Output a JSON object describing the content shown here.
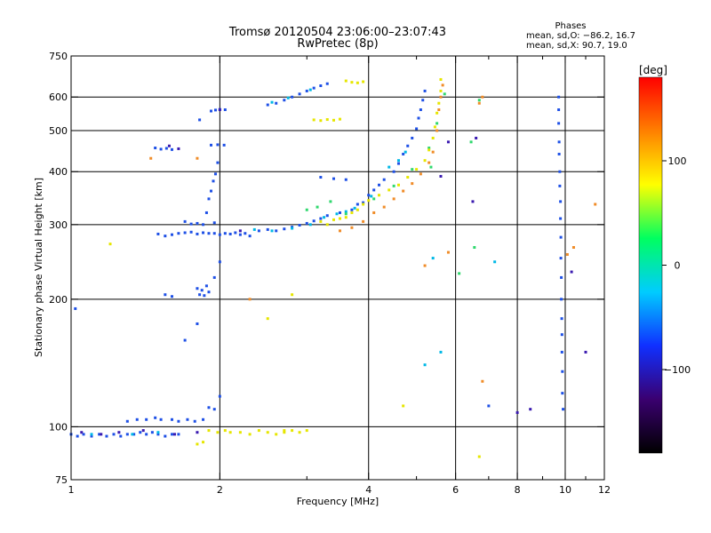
{
  "chart_data": {
    "type": "scatter",
    "title": "Tromsø 20120504 23:06:00–23:07:43",
    "subtitle": "RwPretec (8p)",
    "xlabel": "Frequency [MHz]",
    "ylabel": "Stationary phase Virtual Height [km]",
    "x_scale": "log",
    "y_scale": "log",
    "xlim": [
      1,
      12
    ],
    "ylim": [
      75,
      750
    ],
    "x_ticks": [
      1,
      2,
      4,
      6,
      8,
      10,
      12
    ],
    "x_minor_ticks": [
      3,
      5,
      7,
      9,
      11
    ],
    "y_ticks": [
      75,
      100,
      200,
      300,
      400,
      500,
      600,
      750
    ],
    "grid_x": [
      2,
      4,
      6,
      8,
      10
    ],
    "grid_y": [
      100,
      200,
      300,
      400,
      500,
      600
    ],
    "phases_box": {
      "heading": "Phases",
      "line1": "mean, sd,O: −86.2, 16.7",
      "line2": "mean, sd,X:  90.7, 19.0"
    },
    "colorbar": {
      "label": "[deg]",
      "range": [
        -180,
        180
      ],
      "ticks": [
        "100",
        "0",
        "−100"
      ],
      "tick_values": [
        100,
        0,
        -100
      ],
      "stops": [
        "#000000",
        "#3a0070",
        "#1030ff",
        "#00ccff",
        "#00ff60",
        "#ffff00",
        "#ff8000",
        "#ff0000"
      ]
    },
    "series": [
      {
        "color": "#1e50e6",
        "points": [
          [
            1.0,
            96
          ],
          [
            1.03,
            95
          ],
          [
            1.06,
            96
          ],
          [
            1.1,
            95
          ],
          [
            1.14,
            96
          ],
          [
            1.18,
            95
          ],
          [
            1.22,
            96
          ],
          [
            1.26,
            95
          ],
          [
            1.3,
            96
          ],
          [
            1.34,
            96
          ],
          [
            1.38,
            97
          ],
          [
            1.42,
            96
          ],
          [
            1.46,
            97
          ],
          [
            1.5,
            96
          ],
          [
            1.55,
            95
          ],
          [
            1.6,
            96
          ],
          [
            1.65,
            96
          ],
          [
            1.3,
            103
          ],
          [
            1.36,
            104
          ],
          [
            1.42,
            104
          ],
          [
            1.48,
            105
          ],
          [
            1.52,
            104
          ],
          [
            1.6,
            104
          ],
          [
            1.65,
            103
          ],
          [
            1.72,
            104
          ],
          [
            1.78,
            103
          ],
          [
            1.85,
            104
          ],
          [
            1.9,
            111
          ],
          [
            1.48,
            455
          ],
          [
            1.52,
            452
          ],
          [
            1.56,
            454
          ],
          [
            1.6,
            451
          ],
          [
            1.92,
            462
          ],
          [
            1.98,
            463
          ],
          [
            2.04,
            462
          ],
          [
            1.92,
            556
          ],
          [
            1.96,
            559
          ],
          [
            2.0,
            561
          ],
          [
            2.05,
            560
          ],
          [
            1.82,
            530
          ],
          [
            1.5,
            285
          ],
          [
            1.55,
            282
          ],
          [
            1.6,
            284
          ],
          [
            1.65,
            286
          ],
          [
            1.7,
            287
          ],
          [
            1.75,
            288
          ],
          [
            1.8,
            285
          ],
          [
            1.85,
            287
          ],
          [
            1.9,
            286
          ],
          [
            1.95,
            286
          ],
          [
            2.0,
            284
          ],
          [
            2.05,
            286
          ],
          [
            2.1,
            285
          ],
          [
            2.15,
            287
          ],
          [
            2.2,
            284
          ],
          [
            2.25,
            286
          ],
          [
            2.3,
            282
          ],
          [
            1.7,
            305
          ],
          [
            1.75,
            301
          ],
          [
            1.8,
            302
          ],
          [
            1.85,
            300
          ],
          [
            1.95,
            303
          ],
          [
            1.8,
            212
          ],
          [
            1.82,
            205
          ],
          [
            1.84,
            210
          ],
          [
            1.86,
            204
          ],
          [
            1.88,
            215
          ],
          [
            1.9,
            208
          ],
          [
            1.95,
            225
          ],
          [
            2.0,
            245
          ],
          [
            1.55,
            205
          ],
          [
            1.6,
            203
          ],
          [
            1.88,
            320
          ],
          [
            1.9,
            345
          ],
          [
            1.92,
            360
          ],
          [
            1.94,
            380
          ],
          [
            1.96,
            395
          ],
          [
            1.98,
            420
          ],
          [
            2.4,
            290
          ],
          [
            2.5,
            292
          ],
          [
            2.6,
            290
          ],
          [
            2.7,
            293
          ],
          [
            2.8,
            296
          ],
          [
            2.9,
            299
          ],
          [
            3.0,
            302
          ],
          [
            3.1,
            306
          ],
          [
            3.2,
            310
          ],
          [
            3.3,
            315
          ],
          [
            3.5,
            320
          ],
          [
            3.7,
            325
          ],
          [
            3.8,
            335
          ],
          [
            3.9,
            338
          ],
          [
            4.0,
            352
          ],
          [
            4.1,
            362
          ],
          [
            4.2,
            372
          ],
          [
            4.3,
            383
          ],
          [
            3.2,
            388
          ],
          [
            3.4,
            385
          ],
          [
            3.6,
            383
          ],
          [
            4.5,
            400
          ],
          [
            4.6,
            418
          ],
          [
            4.7,
            440
          ],
          [
            4.8,
            460
          ],
          [
            4.9,
            480
          ],
          [
            5.0,
            505
          ],
          [
            5.05,
            535
          ],
          [
            5.1,
            560
          ],
          [
            5.15,
            590
          ],
          [
            5.2,
            620
          ],
          [
            2.5,
            575
          ],
          [
            2.6,
            580
          ],
          [
            2.7,
            590
          ],
          [
            2.8,
            600
          ],
          [
            2.9,
            610
          ],
          [
            3.0,
            620
          ],
          [
            3.1,
            630
          ],
          [
            3.2,
            638
          ],
          [
            3.3,
            645
          ],
          [
            1.95,
            110
          ],
          [
            2.0,
            118
          ],
          [
            1.7,
            160
          ],
          [
            1.8,
            175
          ],
          [
            9.7,
            600
          ],
          [
            9.7,
            560
          ],
          [
            9.7,
            520
          ],
          [
            9.72,
            470
          ],
          [
            9.72,
            440
          ],
          [
            9.75,
            400
          ],
          [
            9.75,
            370
          ],
          [
            9.78,
            340
          ],
          [
            9.78,
            310
          ],
          [
            9.8,
            280
          ],
          [
            9.8,
            250
          ],
          [
            9.82,
            225
          ],
          [
            9.82,
            200
          ],
          [
            9.84,
            180
          ],
          [
            9.85,
            165
          ],
          [
            9.85,
            150
          ],
          [
            9.87,
            135
          ],
          [
            9.87,
            120
          ],
          [
            9.9,
            110
          ],
          [
            1.02,
            190
          ],
          [
            7.0,
            112
          ]
        ]
      },
      {
        "color": "#3a1ab0",
        "points": [
          [
            1.05,
            97
          ],
          [
            1.15,
            96
          ],
          [
            1.25,
            97
          ],
          [
            1.4,
            98
          ],
          [
            1.62,
            96
          ],
          [
            1.8,
            97
          ],
          [
            1.58,
            460
          ],
          [
            1.65,
            453
          ],
          [
            2.2,
            290
          ],
          [
            2.0,
            560
          ],
          [
            5.6,
            390
          ],
          [
            5.8,
            470
          ],
          [
            6.6,
            480
          ],
          [
            6.5,
            340
          ],
          [
            11.0,
            150
          ],
          [
            10.3,
            232
          ],
          [
            8.5,
            110
          ],
          [
            8.0,
            108
          ]
        ]
      },
      {
        "color": "#00b8e6",
        "points": [
          [
            2.35,
            292
          ],
          [
            2.55,
            290
          ],
          [
            2.8,
            294
          ],
          [
            3.05,
            300
          ],
          [
            3.25,
            312
          ],
          [
            3.45,
            318
          ],
          [
            3.6,
            322
          ],
          [
            3.75,
            328
          ],
          [
            4.05,
            350
          ],
          [
            4.4,
            410
          ],
          [
            4.6,
            425
          ],
          [
            4.75,
            445
          ],
          [
            2.55,
            583
          ],
          [
            2.75,
            597
          ],
          [
            3.05,
            624
          ],
          [
            1.1,
            96
          ],
          [
            1.33,
            96
          ],
          [
            1.5,
            97
          ],
          [
            5.2,
            140
          ],
          [
            5.6,
            150
          ],
          [
            7.2,
            245
          ],
          [
            5.4,
            250
          ]
        ]
      },
      {
        "color": "#30d86e",
        "points": [
          [
            3.0,
            325
          ],
          [
            3.15,
            330
          ],
          [
            3.35,
            340
          ],
          [
            3.6,
            318
          ],
          [
            4.1,
            345
          ],
          [
            4.5,
            370
          ],
          [
            4.9,
            405
          ],
          [
            5.3,
            455
          ],
          [
            5.5,
            520
          ],
          [
            5.7,
            610
          ],
          [
            6.45,
            470
          ],
          [
            6.7,
            590
          ],
          [
            5.35,
            410
          ],
          [
            6.55,
            265
          ],
          [
            6.1,
            230
          ]
        ]
      },
      {
        "color": "#e6e600",
        "points": [
          [
            1.9,
            98
          ],
          [
            1.98,
            97
          ],
          [
            2.05,
            98
          ],
          [
            2.1,
            97
          ],
          [
            2.2,
            97
          ],
          [
            2.3,
            96
          ],
          [
            2.4,
            98
          ],
          [
            2.5,
            97
          ],
          [
            2.6,
            96
          ],
          [
            2.7,
            97
          ],
          [
            2.8,
            98
          ],
          [
            2.9,
            97
          ],
          [
            3.0,
            98
          ],
          [
            3.1,
            530
          ],
          [
            3.2,
            528
          ],
          [
            3.3,
            531
          ],
          [
            3.4,
            529
          ],
          [
            3.5,
            532
          ],
          [
            3.6,
            655
          ],
          [
            3.7,
            650
          ],
          [
            3.8,
            648
          ],
          [
            3.9,
            652
          ],
          [
            3.2,
            305
          ],
          [
            3.3,
            300
          ],
          [
            3.4,
            308
          ],
          [
            3.5,
            310
          ],
          [
            3.6,
            312
          ],
          [
            3.7,
            320
          ],
          [
            3.8,
            325
          ],
          [
            3.9,
            335
          ],
          [
            4.0,
            342
          ],
          [
            4.2,
            352
          ],
          [
            4.4,
            362
          ],
          [
            4.6,
            372
          ],
          [
            4.8,
            388
          ],
          [
            5.0,
            405
          ],
          [
            5.2,
            425
          ],
          [
            5.3,
            450
          ],
          [
            5.4,
            480
          ],
          [
            5.45,
            510
          ],
          [
            5.5,
            550
          ],
          [
            5.55,
            580
          ],
          [
            5.6,
            620
          ],
          [
            5.6,
            660
          ],
          [
            1.85,
            92
          ],
          [
            1.8,
            91
          ],
          [
            2.5,
            180
          ],
          [
            2.8,
            205
          ],
          [
            1.2,
            270
          ],
          [
            2.7,
            98
          ],
          [
            4.7,
            112
          ],
          [
            6.7,
            85
          ]
        ]
      },
      {
        "color": "#f08c28",
        "points": [
          [
            3.5,
            290
          ],
          [
            3.7,
            295
          ],
          [
            3.9,
            305
          ],
          [
            4.1,
            320
          ],
          [
            4.3,
            330
          ],
          [
            4.5,
            345
          ],
          [
            4.7,
            360
          ],
          [
            4.9,
            375
          ],
          [
            5.1,
            395
          ],
          [
            5.3,
            420
          ],
          [
            5.4,
            445
          ],
          [
            5.5,
            500
          ],
          [
            5.55,
            560
          ],
          [
            5.6,
            600
          ],
          [
            5.65,
            640
          ],
          [
            6.7,
            580
          ],
          [
            6.8,
            600
          ],
          [
            10.1,
            255
          ],
          [
            10.4,
            265
          ],
          [
            11.5,
            335
          ],
          [
            5.8,
            258
          ],
          [
            5.2,
            240
          ],
          [
            1.8,
            430
          ],
          [
            2.3,
            200
          ],
          [
            1.45,
            430
          ],
          [
            6.8,
            128
          ]
        ]
      }
    ]
  }
}
